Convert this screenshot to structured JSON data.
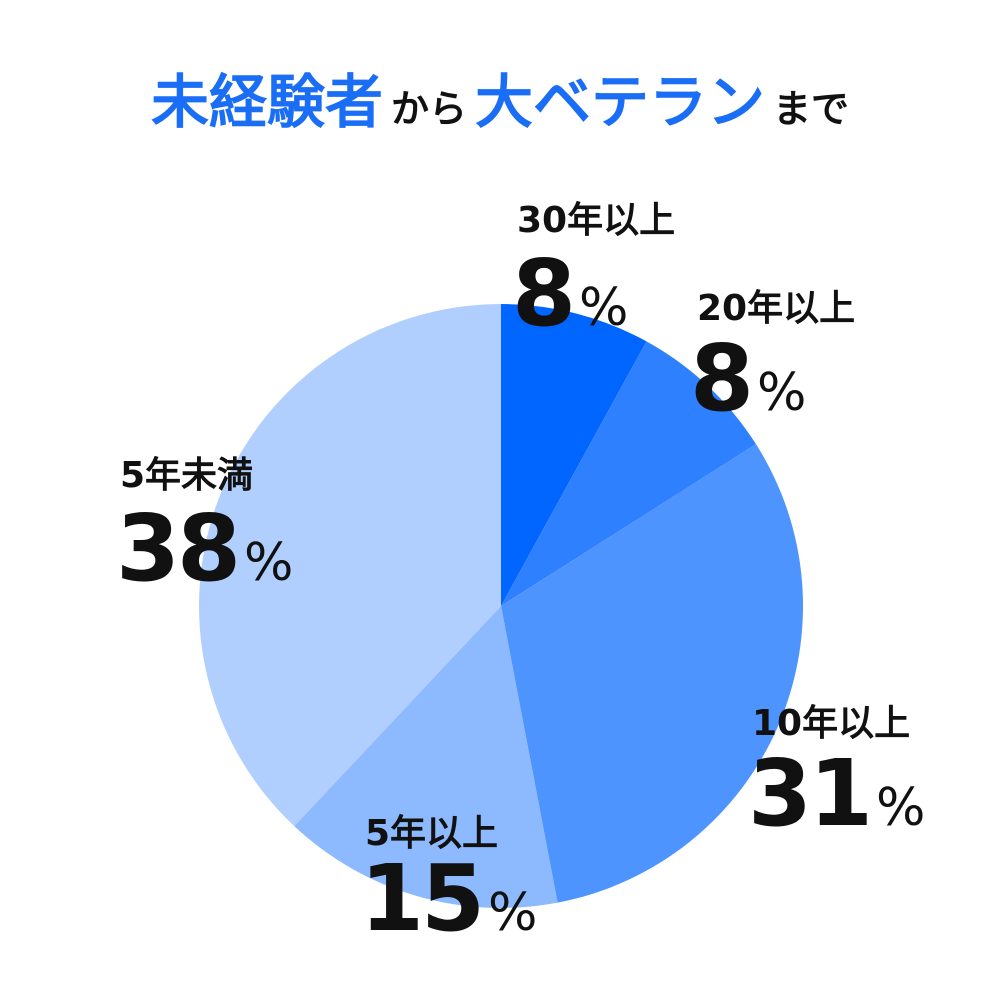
{
  "chart_data": {
    "type": "pie",
    "title": [
      "未経験者",
      "から",
      "大ベテラン",
      "まで"
    ],
    "categories": [
      "30年以上",
      "20年以上",
      "10年以上",
      "5年以上",
      "5年未満"
    ],
    "values": [
      8,
      8,
      31,
      15,
      38
    ],
    "value_labels": [
      "8%",
      "8%",
      "31%",
      "15%",
      "38%"
    ],
    "colors": [
      "#0066ff",
      "#2f80ff",
      "#4d94ff",
      "#8db9ff",
      "#b0cfff"
    ]
  }
}
